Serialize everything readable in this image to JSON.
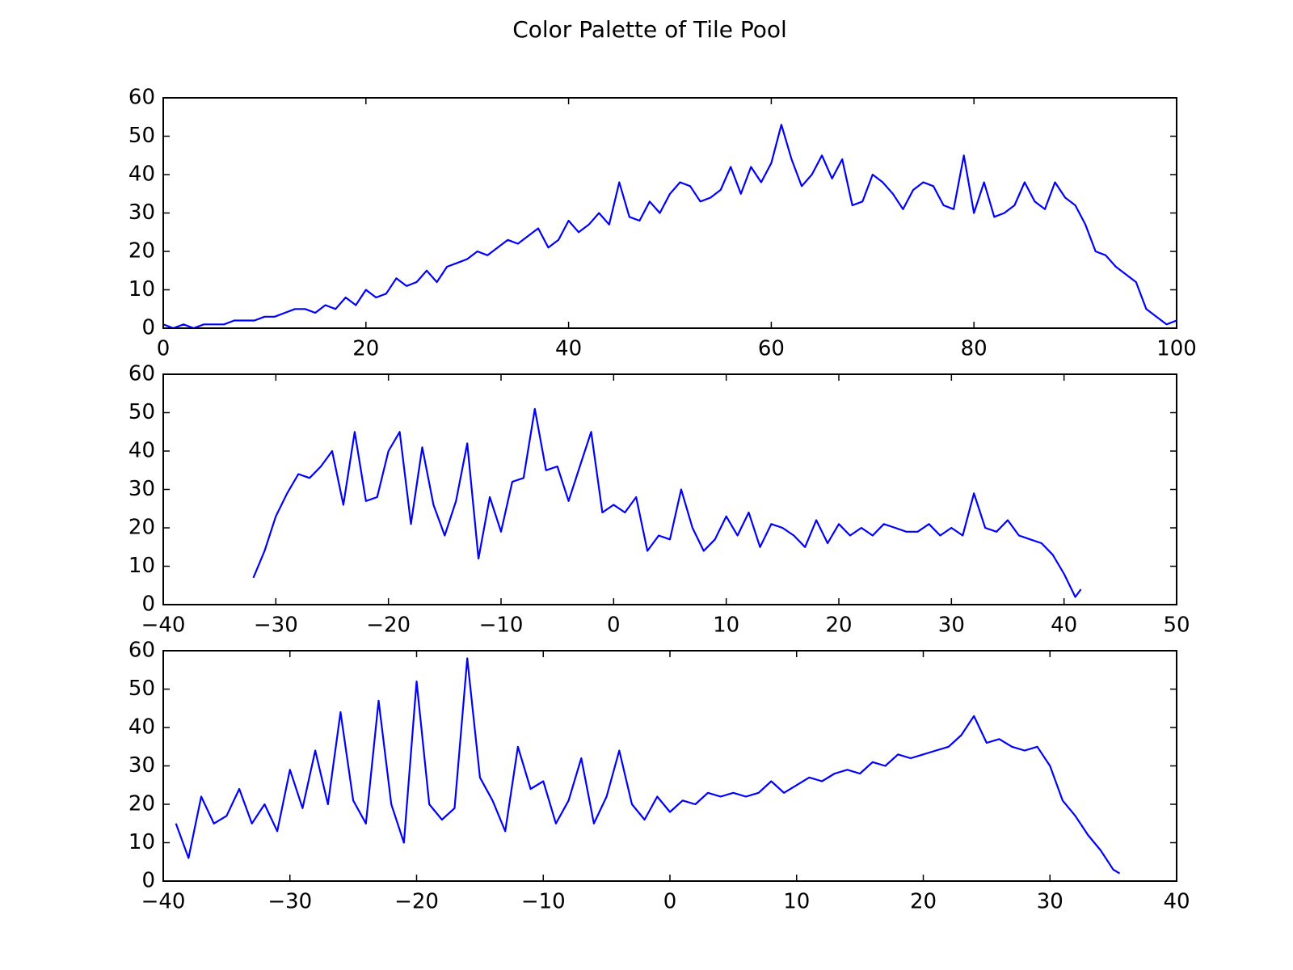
{
  "title": "Color Palette of Tile Pool",
  "chart_data": [
    {
      "type": "line",
      "color": "#0000ff",
      "x": [
        0,
        1,
        2,
        3,
        4,
        5,
        6,
        7,
        8,
        9,
        10,
        11,
        12,
        13,
        14,
        15,
        16,
        17,
        18,
        19,
        20,
        21,
        22,
        23,
        24,
        25,
        26,
        27,
        28,
        29,
        30,
        31,
        32,
        33,
        34,
        35,
        36,
        37,
        38,
        39,
        40,
        41,
        42,
        43,
        44,
        45,
        46,
        47,
        48,
        49,
        50,
        51,
        52,
        53,
        54,
        55,
        56,
        57,
        58,
        59,
        60,
        61,
        62,
        63,
        64,
        65,
        66,
        67,
        68,
        69,
        70,
        71,
        72,
        73,
        74,
        75,
        76,
        77,
        78,
        79,
        80,
        81,
        82,
        83,
        84,
        85,
        86,
        87,
        88,
        89,
        90,
        91,
        92,
        93,
        94,
        95,
        96,
        97,
        98,
        99,
        100
      ],
      "values": [
        1,
        0,
        1,
        0,
        1,
        1,
        1,
        2,
        2,
        2,
        3,
        3,
        4,
        5,
        5,
        4,
        6,
        5,
        8,
        6,
        10,
        8,
        9,
        13,
        11,
        12,
        15,
        12,
        16,
        17,
        18,
        20,
        19,
        21,
        23,
        22,
        24,
        26,
        21,
        23,
        28,
        25,
        27,
        30,
        27,
        38,
        29,
        28,
        33,
        30,
        35,
        38,
        37,
        33,
        34,
        36,
        42,
        35,
        42,
        38,
        43,
        53,
        44,
        37,
        40,
        45,
        39,
        44,
        32,
        33,
        40,
        38,
        35,
        31,
        36,
        38,
        37,
        32,
        31,
        45,
        30,
        38,
        29,
        30,
        32,
        38,
        33,
        31,
        38,
        34,
        32,
        27,
        20,
        19,
        16,
        14,
        12,
        5,
        3,
        1,
        2
      ],
      "xlim": [
        0,
        100
      ],
      "xticks": [
        0,
        20,
        40,
        60,
        80,
        100
      ],
      "ylim": [
        0,
        60
      ],
      "yticks": [
        0,
        10,
        20,
        30,
        40,
        50,
        60
      ]
    },
    {
      "type": "line",
      "color": "#0000ff",
      "x": [
        -32,
        -31,
        -30,
        -29,
        -28,
        -27,
        -26,
        -25,
        -24,
        -23,
        -22,
        -21,
        -20,
        -19,
        -18,
        -17,
        -16,
        -15,
        -14,
        -13,
        -12,
        -11,
        -10,
        -9,
        -8,
        -7,
        -6,
        -5,
        -4,
        -3,
        -2,
        -1,
        0,
        1,
        2,
        3,
        4,
        5,
        6,
        7,
        8,
        9,
        10,
        11,
        12,
        13,
        14,
        15,
        16,
        17,
        18,
        19,
        20,
        21,
        22,
        23,
        24,
        25,
        26,
        27,
        28,
        29,
        30,
        31,
        32,
        33,
        34,
        35,
        36,
        37,
        38,
        39,
        40,
        41,
        41.5
      ],
      "values": [
        7,
        14,
        23,
        29,
        34,
        33,
        36,
        40,
        26,
        45,
        27,
        28,
        40,
        45,
        21,
        41,
        26,
        18,
        27,
        42,
        12,
        28,
        19,
        32,
        33,
        51,
        35,
        36,
        27,
        36,
        45,
        24,
        26,
        24,
        28,
        14,
        18,
        17,
        30,
        20,
        14,
        17,
        23,
        18,
        24,
        15,
        21,
        20,
        18,
        15,
        22,
        16,
        21,
        18,
        20,
        18,
        21,
        20,
        19,
        19,
        21,
        18,
        20,
        18,
        29,
        20,
        19,
        22,
        18,
        17,
        16,
        13,
        8,
        2,
        4
      ],
      "xlim": [
        -40,
        50
      ],
      "xticks": [
        {
          "value": -40,
          "label": "−40"
        },
        {
          "value": -30,
          "label": "−30"
        },
        {
          "value": -20,
          "label": "−20"
        },
        {
          "value": -10,
          "label": "−10"
        },
        0,
        10,
        20,
        30,
        40,
        50
      ],
      "ylim": [
        0,
        60
      ],
      "yticks": [
        0,
        10,
        20,
        30,
        40,
        50,
        60
      ]
    },
    {
      "type": "line",
      "color": "#0000ff",
      "x": [
        -39,
        -38,
        -37,
        -36,
        -35,
        -34,
        -33,
        -32,
        -31,
        -30,
        -29,
        -28,
        -27,
        -26,
        -25,
        -24,
        -23,
        -22,
        -21,
        -20,
        -19,
        -18,
        -17,
        -16,
        -15,
        -14,
        -13,
        -12,
        -11,
        -10,
        -9,
        -8,
        -7,
        -6,
        -5,
        -4,
        -3,
        -2,
        -1,
        0,
        1,
        2,
        3,
        4,
        5,
        6,
        7,
        8,
        9,
        10,
        11,
        12,
        13,
        14,
        15,
        16,
        17,
        18,
        19,
        20,
        21,
        22,
        23,
        24,
        25,
        26,
        27,
        28,
        29,
        30,
        31,
        32,
        33,
        34,
        35,
        35.5
      ],
      "values": [
        15,
        6,
        22,
        15,
        17,
        24,
        15,
        20,
        13,
        29,
        19,
        34,
        20,
        44,
        21,
        15,
        47,
        20,
        10,
        52,
        20,
        16,
        19,
        58,
        27,
        21,
        13,
        35,
        24,
        26,
        15,
        21,
        32,
        15,
        22,
        34,
        20,
        16,
        22,
        18,
        21,
        20,
        23,
        22,
        23,
        22,
        23,
        26,
        23,
        25,
        27,
        26,
        28,
        29,
        28,
        31,
        30,
        33,
        32,
        33,
        34,
        35,
        38,
        43,
        36,
        37,
        35,
        34,
        35,
        30,
        21,
        17,
        12,
        8,
        3,
        2
      ],
      "xlim": [
        -40,
        40
      ],
      "xticks": [
        {
          "value": -40,
          "label": "−40"
        },
        {
          "value": -30,
          "label": "−30"
        },
        {
          "value": -20,
          "label": "−20"
        },
        {
          "value": -10,
          "label": "−10"
        },
        0,
        10,
        20,
        30,
        40
      ],
      "ylim": [
        0,
        60
      ],
      "yticks": [
        0,
        10,
        20,
        30,
        40,
        50,
        60
      ]
    }
  ]
}
